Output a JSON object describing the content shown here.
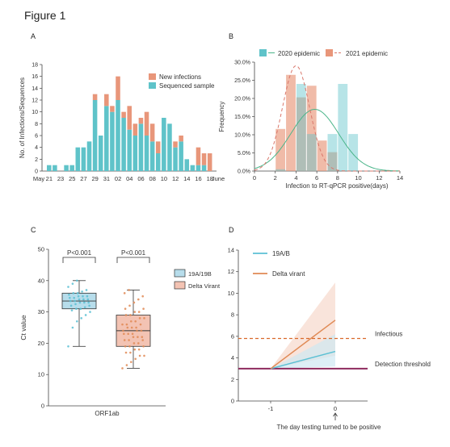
{
  "figure": {
    "title": "Figure 1",
    "panel_letters": [
      "A",
      "B",
      "C",
      "D"
    ]
  },
  "colors": {
    "orange": "#E8967A",
    "teal": "#5FC3C9",
    "blue_box": "#B7DDEB",
    "blue_box_edge": "#3A4A5A",
    "orange_box": "#F3C3B3",
    "orange_line": "#E08A55",
    "teal_line": "#5BC0D4",
    "green_curve": "#4BB58A",
    "dashed_red": "#D9776B",
    "purple": "#8E2A5E",
    "dark_orange_dash": "#D9692A"
  },
  "chart_data": [
    {
      "panel": "A",
      "type": "bar",
      "stacked": true,
      "ylabel": "No. of Infections/Sequences",
      "ylim": [
        0,
        18
      ],
      "yticks": [
        0,
        2,
        4,
        6,
        8,
        10,
        12,
        14,
        16,
        18
      ],
      "x_tick_labels": [
        "May",
        "21",
        "23",
        "25",
        "27",
        "29",
        "31",
        "02",
        "04",
        "06",
        "08",
        "10",
        "12",
        "14",
        "16",
        "18",
        "June"
      ],
      "categories": [
        "May 21",
        "May 22",
        "May 23",
        "May 24",
        "May 25",
        "May 26",
        "May 27",
        "May 28",
        "May 29",
        "May 30",
        "May 31",
        "Jun 1",
        "Jun 2",
        "Jun 3",
        "Jun 4",
        "Jun 5",
        "Jun 6",
        "Jun 7",
        "Jun 8",
        "Jun 9",
        "Jun 10",
        "Jun 11",
        "Jun 12",
        "Jun 13",
        "Jun 14",
        "Jun 15",
        "Jun 16",
        "Jun 17",
        "Jun 18"
      ],
      "series": [
        {
          "name": "Sequenced sample",
          "values": [
            1,
            1,
            0,
            1,
            1,
            4,
            4,
            5,
            12,
            6,
            11,
            10,
            12,
            9,
            7,
            6,
            8,
            6,
            5,
            3,
            9,
            8,
            4,
            5,
            2,
            1,
            1,
            1,
            0
          ]
        },
        {
          "name": "New infections",
          "values": [
            0,
            0,
            0,
            0,
            0,
            0,
            0,
            0,
            1,
            0,
            2,
            1,
            4,
            1,
            4,
            2,
            1,
            4,
            3,
            2,
            0,
            0,
            1,
            1,
            0,
            0,
            3,
            2,
            3
          ]
        }
      ],
      "legend_position": "top-right"
    },
    {
      "panel": "B",
      "type": "bar",
      "ylabel": "Frequency",
      "xlabel": "Infection to RT-qPCR positive(days)",
      "xlim": [
        0,
        14
      ],
      "ylim": [
        0,
        30
      ],
      "xticks": [
        0,
        2,
        4,
        6,
        8,
        10,
        12,
        14
      ],
      "ytick_labels": [
        "0.0%",
        "5.0%",
        "10.0%",
        "15.0%",
        "20.0%",
        "25.0%",
        "30.0%"
      ],
      "yticks": [
        0,
        5,
        10,
        15,
        20,
        25,
        30
      ],
      "series": [
        {
          "name": "2020 epidemic",
          "bins": [
            [
              2,
              3,
              0.5
            ],
            [
              3,
              4,
              0
            ],
            [
              4,
              5,
              24
            ],
            [
              5,
              6,
              10.2
            ],
            [
              6,
              7,
              0
            ],
            [
              7,
              8,
              10.2
            ],
            [
              8,
              9,
              24
            ],
            [
              9,
              10,
              10.2
            ]
          ],
          "fit": {
            "mean": 5.8,
            "sd": 2.3,
            "peak": 17
          }
        },
        {
          "name": "2021 epidemic",
          "bins": [
            [
              2,
              3,
              11.6
            ],
            [
              3,
              4,
              26.5
            ],
            [
              4,
              5,
              20.3
            ],
            [
              5,
              6,
              23.5
            ],
            [
              6,
              7,
              8.4
            ],
            [
              7,
              8,
              5.2
            ],
            [
              8,
              9,
              0
            ],
            [
              9,
              10,
              0
            ]
          ],
          "fit": {
            "mean": 4.0,
            "sd": 1.3,
            "peak": 29
          }
        }
      ],
      "legend_position": "top"
    },
    {
      "panel": "C",
      "type": "box",
      "ylabel": "Ct value",
      "xlabel": "ORF1ab",
      "ylim": [
        0,
        50
      ],
      "yticks": [
        0,
        10,
        20,
        30,
        40,
        50
      ],
      "series": [
        {
          "name": "19A/19B",
          "min": 19,
          "q1": 31,
          "median": 33.5,
          "q3": 36,
          "max": 40,
          "points": [
            19,
            25,
            27,
            28,
            29,
            30,
            30.5,
            31,
            31,
            31.5,
            32,
            32,
            32.5,
            33,
            33,
            33,
            33.5,
            33.5,
            34,
            34,
            34,
            34.5,
            34.5,
            35,
            35,
            35,
            35.5,
            36,
            36,
            36.5,
            37,
            38,
            39,
            40
          ]
        },
        {
          "name": "Delta Virant",
          "min": 12,
          "q1": 19,
          "median": 24,
          "q3": 29,
          "max": 37,
          "points": [
            12,
            13,
            14,
            15,
            16,
            16,
            17,
            17,
            18,
            18,
            19,
            19,
            19,
            20,
            20,
            21,
            21,
            21,
            22,
            22,
            22,
            23,
            23,
            23,
            24,
            24,
            24,
            25,
            25,
            25,
            26,
            26,
            26,
            27,
            27,
            28,
            28,
            29,
            29,
            30,
            30,
            31,
            31,
            32,
            33,
            34,
            35,
            36,
            37
          ]
        }
      ],
      "annotations": [
        "P<0.001",
        "P<0.001"
      ],
      "legend_position": "right"
    },
    {
      "panel": "D",
      "type": "line",
      "xlabel": "The day testing turned to be positive",
      "xticks": [
        -1,
        0
      ],
      "xlim": [
        -1.5,
        0.5
      ],
      "ylim": [
        0,
        14
      ],
      "yticks": [
        0,
        2,
        4,
        6,
        8,
        10,
        12,
        14
      ],
      "series": [
        {
          "name": "19A/B",
          "x": [
            -1,
            0
          ],
          "y": [
            3,
            4.6
          ],
          "band_low": [
            3,
            3.2
          ],
          "band_high": [
            3,
            6.2
          ]
        },
        {
          "name": "Delta virant",
          "x": [
            -1,
            0
          ],
          "y": [
            3,
            7.5
          ],
          "band_low": [
            3,
            4.2
          ],
          "band_high": [
            3,
            11
          ]
        }
      ],
      "reference_lines": [
        {
          "name": "Infectious",
          "y": 5.8
        },
        {
          "name": "Detection threshold",
          "y": 3
        }
      ],
      "legend_position": "top-left"
    }
  ]
}
